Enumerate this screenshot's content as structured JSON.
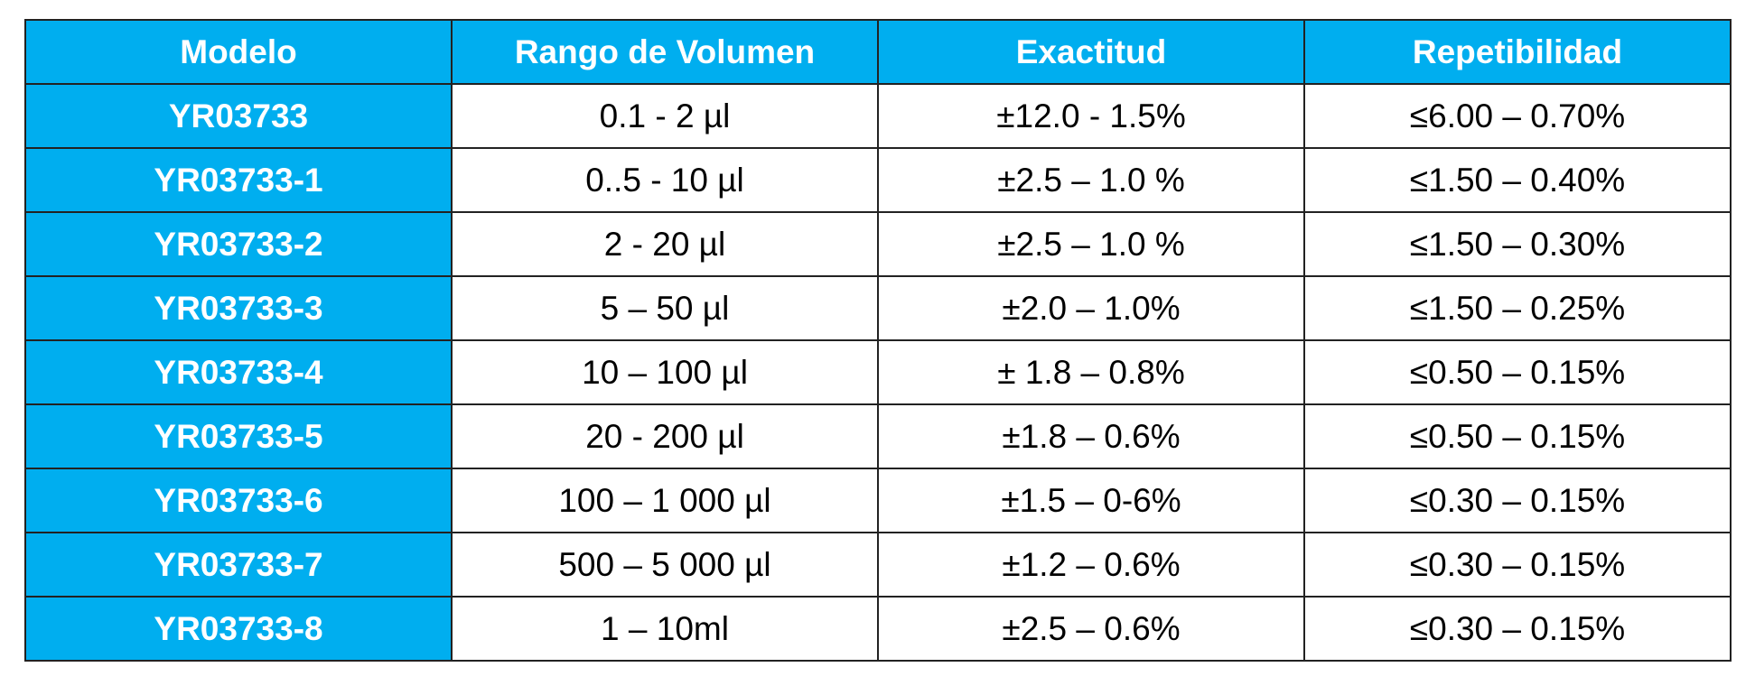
{
  "table": {
    "header": [
      "Modelo",
      "Rango de Volumen",
      "Exactitud",
      "Repetibilidad"
    ],
    "rows": [
      [
        "YR03733",
        "0.1 - 2 µl",
        "±12.0 - 1.5%",
        "≤6.00 – 0.70%"
      ],
      [
        "YR03733-1",
        "0..5 - 10 µl",
        "±2.5 – 1.0 %",
        "≤1.50 – 0.40%"
      ],
      [
        "YR03733-2",
        "2 - 20 µl",
        "±2.5 – 1.0 %",
        "≤1.50 – 0.30%"
      ],
      [
        "YR03733-3",
        "5 – 50 µl",
        "±2.0 – 1.0%",
        "≤1.50 – 0.25%"
      ],
      [
        "YR03733-4",
        "10 – 100 µl",
        "± 1.8 – 0.8%",
        "≤0.50 – 0.15%"
      ],
      [
        "YR03733-5",
        "20 - 200 µl",
        "±1.8 – 0.6%",
        "≤0.50 – 0.15%"
      ],
      [
        "YR03733-6",
        "100 – 1 000 µl",
        "±1.5 – 0-6%",
        "≤0.30 – 0.15%"
      ],
      [
        "YR03733-7",
        "500 – 5 000 µl",
        "±1.2 – 0.6%",
        "≤0.30 – 0.15%"
      ],
      [
        "YR03733-8",
        "1 – 10ml",
        "±2.5 – 0.6%",
        "≤0.30 – 0.15%"
      ]
    ]
  }
}
